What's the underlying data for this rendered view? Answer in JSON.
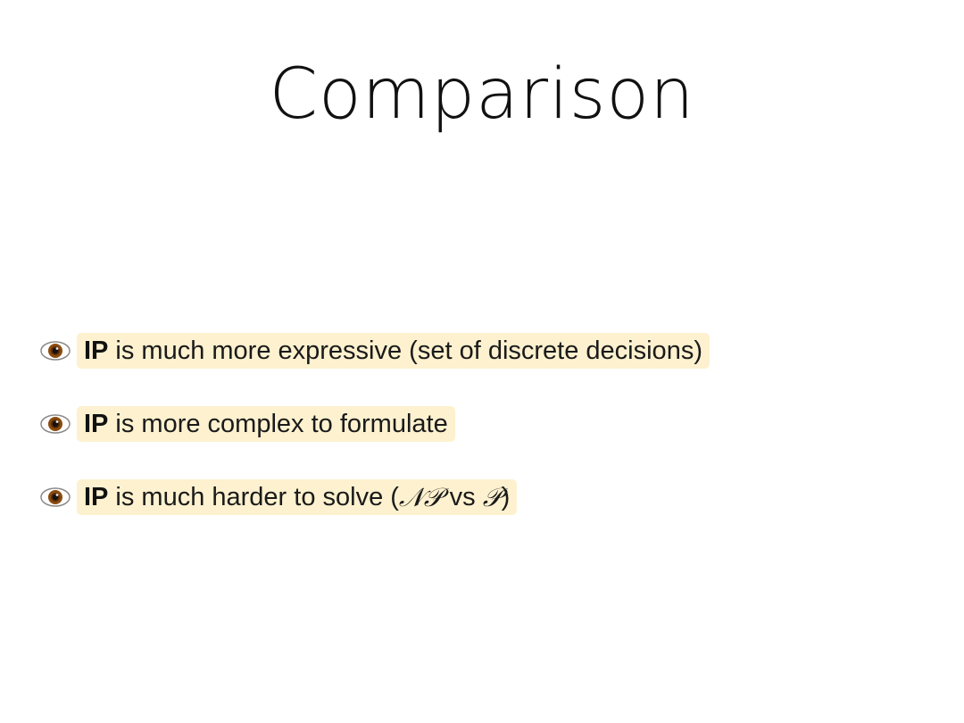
{
  "slide": {
    "title": "Comparison",
    "bullets": [
      {
        "icon": "eye-icon",
        "strong": "IP",
        "text": "is much more expressive (set of discrete decisions)"
      },
      {
        "icon": "eye-icon",
        "strong": "IP",
        "text": "is more complex to formulate"
      },
      {
        "icon": "eye-icon",
        "strong": "IP",
        "text_before": "is much harder to solve (",
        "math_np": "𝒩𝒫",
        "text_middle": " vs ",
        "math_p": "𝒫",
        "text_after": ")"
      }
    ]
  },
  "colors": {
    "highlight": "#fdf1cf",
    "text": "#111111",
    "background": "#ffffff"
  }
}
